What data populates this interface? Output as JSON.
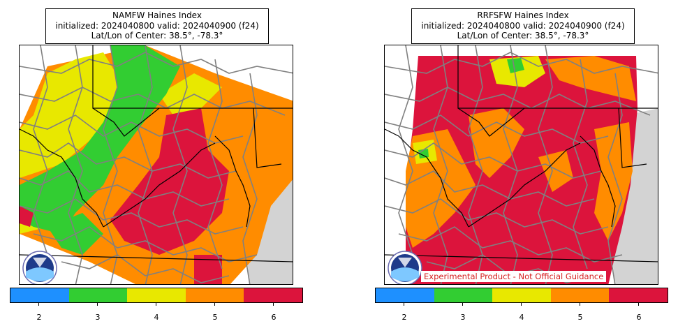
{
  "panels": [
    {
      "title_line1": "NAMFW Haines Index",
      "title_line2": "initialized: 2024040800 valid: 2024040900 (f24)",
      "title_line3": "Lat/Lon of Center: 38.5°, -78.3°",
      "logo_text": "NOAA",
      "disclaimer": ""
    },
    {
      "title_line1": "RRFSFW Haines Index",
      "title_line2": "initialized: 2024040800 valid: 2024040900 (f24)",
      "title_line3": "Lat/Lon of Center: 38.5°, -78.3°",
      "logo_text": "NOAA",
      "disclaimer": "Experimental Product - Not Official Guidance"
    }
  ],
  "colorbar": {
    "ticks": [
      "2",
      "3",
      "4",
      "5",
      "6"
    ],
    "colors": [
      "#1e90ff",
      "#32cd32",
      "#e8e800",
      "#ff8c00",
      "#dc143c"
    ]
  },
  "chart_data": [
    {
      "type": "heatmap",
      "title": "NAMFW Haines Index",
      "subtitle": "initialized: 2024040800 valid: 2024040900 (f24)",
      "center": "Lat/Lon of Center: 38.5°, -78.3°",
      "levels": [
        2,
        3,
        4,
        5,
        6
      ],
      "level_colors": [
        "#1e90ff",
        "#32cd32",
        "#e8e800",
        "#ff8c00",
        "#dc143c"
      ],
      "dominant_levels_by_region": {
        "northwest": "3-4",
        "central": "5",
        "southeast": "6",
        "coastal_east": "5"
      }
    },
    {
      "type": "heatmap",
      "title": "RRFSFW Haines Index",
      "subtitle": "initialized: 2024040800 valid: 2024040900 (f24)",
      "center": "Lat/Lon of Center: 38.5°, -78.3°",
      "levels": [
        2,
        3,
        4,
        5,
        6
      ],
      "level_colors": [
        "#1e90ff",
        "#32cd32",
        "#e8e800",
        "#ff8c00",
        "#dc143c"
      ],
      "dominant_levels_by_region": {
        "northwest": "6",
        "north": "4-5",
        "central": "5-6",
        "southeast": "6",
        "coastal_east": "5"
      }
    }
  ]
}
